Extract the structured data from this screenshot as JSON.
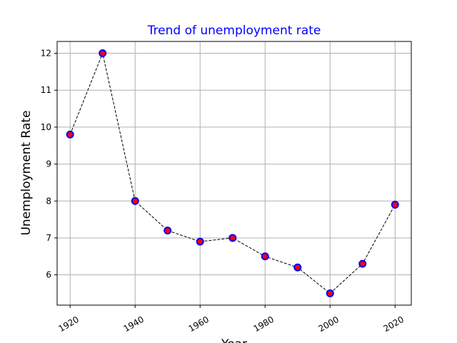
{
  "chart_data": {
    "type": "line",
    "title": "Trend of unemployment rate",
    "title_color": "#0000ff",
    "xlabel": "Year",
    "ylabel": "Unemployment Rate",
    "x": [
      1920,
      1930,
      1940,
      1950,
      1960,
      1970,
      1980,
      1990,
      2000,
      2010,
      2020
    ],
    "series": [
      {
        "values": [
          9.8,
          12.0,
          8.0,
          7.2,
          6.9,
          7.0,
          6.5,
          6.2,
          5.5,
          6.3,
          7.9
        ],
        "line_color": "#000000",
        "line_style": "dashed",
        "marker": "circle",
        "marker_face_color": "#ff0000",
        "marker_edge_color": "#0000ff"
      }
    ],
    "xticks": [
      "1920",
      "1940",
      "1960",
      "1980",
      "2000",
      "2020"
    ],
    "yticks": [
      "6",
      "7",
      "8",
      "9",
      "10",
      "11",
      "12"
    ],
    "xlim": [
      1916,
      2025
    ],
    "ylim": [
      5.18,
      12.32
    ],
    "grid": true,
    "grid_color": "#b0b0b0"
  }
}
